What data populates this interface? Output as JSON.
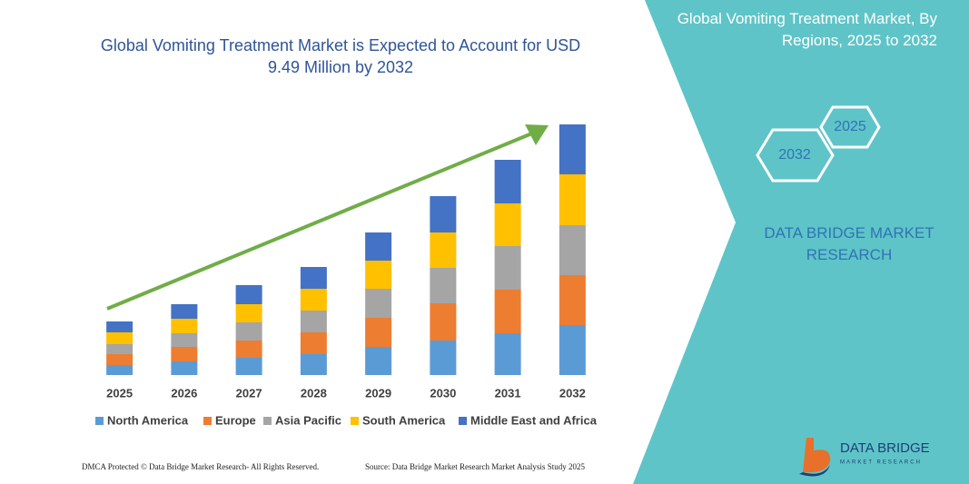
{
  "chart_data": {
    "type": "bar",
    "stacked": true,
    "title": "Global Vomiting Treatment Market is Expected to Account for USD 9.49 Million by 2032",
    "categories": [
      "2025",
      "2026",
      "2027",
      "2028",
      "2029",
      "2030",
      "2031",
      "2032"
    ],
    "series": [
      {
        "name": "North America",
        "color": "#5b9bd5",
        "values": [
          11,
          15,
          19,
          23,
          31,
          38,
          46,
          55
        ]
      },
      {
        "name": "Europe",
        "color": "#ed7d31",
        "values": [
          12,
          16,
          19,
          24,
          32,
          41,
          48,
          55
        ]
      },
      {
        "name": "Asia Pacific",
        "color": "#a5a5a5",
        "values": [
          11,
          15,
          20,
          24,
          32,
          39,
          48,
          55
        ]
      },
      {
        "name": "South America",
        "color": "#ffc000",
        "values": [
          13,
          16,
          20,
          24,
          31,
          39,
          47,
          56
        ]
      },
      {
        "name": "Middle East and Africa",
        "color": "#4472c4",
        "values": [
          12,
          16,
          21,
          24,
          31,
          40,
          48,
          55
        ]
      }
    ],
    "legend": "bottom"
  },
  "panel": {
    "title": "Global Vomiting Treatment Market, By Regions, 2025 to 2032",
    "hex_start": "2025",
    "hex_end": "2032",
    "brand": "DATA BRIDGE MARKET RESEARCH"
  },
  "footer": {
    "left": "DMCA Protected © Data Bridge Market Research- All Rights Reserved.",
    "right": "Source: Data Bridge Market Research Market Analysis Study 2025"
  },
  "logo": {
    "name": "DATA BRIDGE",
    "tagline": "MARKET RESEARCH"
  }
}
